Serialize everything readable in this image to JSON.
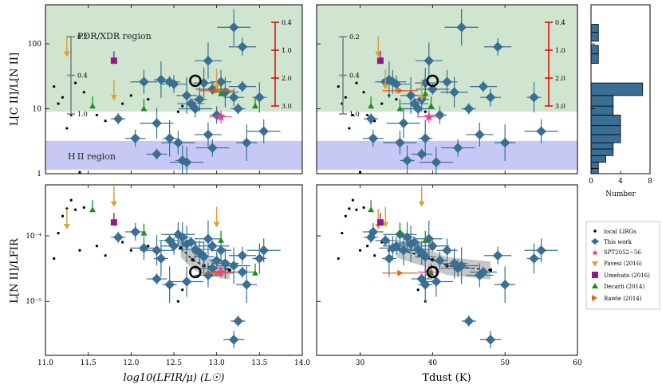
{
  "chart_data": {
    "type": "scatter",
    "colors": {
      "this_work": "#3a6f95",
      "local": "#000000",
      "spt": "#e0409a",
      "pavesi": "#e0a030",
      "umehata": "#8e1a8e",
      "decarli": "#1a8f1a",
      "rawle": "#e06020",
      "pdr_region": "#cfe5cf",
      "hii_region": "#c8c8f5",
      "scale_red": "#dd1010",
      "scale_gray": "#808080",
      "hist": "#3a6f95"
    },
    "legend": {
      "local": "local LIRGs",
      "this_work": "This work",
      "spt": "SPT2052−56",
      "pavesi": "Pavesi (2016)",
      "umehata": "Umehata (2016)",
      "decarli": "Decarli (2014)",
      "rawle": "Rawle (2014)"
    },
    "axes": {
      "top_ylabel": "L[C II]/L[N II]",
      "bottom_ylabel": "L[N II]/LFIR",
      "left_xlabel": "log10(LFIR/μ) (L☉)",
      "right_xlabel": "Tdust (K)",
      "hist_xlabel": "Number",
      "left_xlim": [
        11.0,
        14.0
      ],
      "left_xticks": [
        "11.0",
        "11.5",
        "12.0",
        "12.5",
        "13.0",
        "13.5",
        "14.0"
      ],
      "right_xlim": [
        24,
        60
      ],
      "right_xticks": [
        "30",
        "40",
        "50",
        "60"
      ],
      "top_ylim": [
        1,
        400
      ],
      "top_yticks": [
        "1",
        "10",
        "100"
      ],
      "bottom_ylim": [
        1.5e-06,
        0.0006
      ],
      "bottom_yticks": [
        "10⁻⁵",
        "10⁻⁴"
      ],
      "hist_xticks": [
        "0",
        "4",
        "8"
      ]
    },
    "regions": {
      "pdr_label": "PDR/XDR region",
      "pdr_range": [
        9,
        400
      ],
      "hii_label": "H II region",
      "hii_range": [
        1.15,
        3.2
      ]
    },
    "scale_bar_left": [
      "0.2",
      "0.4",
      "1.0"
    ],
    "scale_bar_right": [
      "0.4",
      "1.0",
      "2.0",
      "3.0"
    ],
    "this_work": [
      {
        "lfir": 11.85,
        "t": 31.5,
        "r": 7.0,
        "n": 9.5e-05
      },
      {
        "lfir": 12.05,
        "t": 31.8,
        "r": 3.5,
        "n": 0.000115
      },
      {
        "lfir": 12.15,
        "t": 34.5,
        "r": 26.0,
        "n": 6.5e-05
      },
      {
        "lfir": 12.3,
        "t": 36.0,
        "r": 6.0,
        "n": 6e-05
      },
      {
        "lfir": 12.35,
        "t": 34.0,
        "r": 28.0,
        "n": 4.5e-05
      },
      {
        "lfir": 12.45,
        "t": 33.5,
        "r": 26.0,
        "n": 8.5e-05
      },
      {
        "lfir": 12.5,
        "t": 35.0,
        "r": 24.0,
        "n": 7e-05
      },
      {
        "lfir": 12.55,
        "t": 35.5,
        "r": 3.0,
        "n": 0.000105
      },
      {
        "lfir": 12.6,
        "t": 36.5,
        "r": 1.6,
        "n": 9.5e-05
      },
      {
        "lfir": 12.65,
        "t": 37.0,
        "r": 16.0,
        "n": 7.5e-05
      },
      {
        "lfir": 12.7,
        "t": 37.5,
        "r": 12.0,
        "n": 8e-05
      },
      {
        "lfir": 12.75,
        "t": 38.0,
        "r": 10.0,
        "n": 6.2e-05
      },
      {
        "lfir": 12.8,
        "t": 38.5,
        "r": 14.0,
        "n": 5.5e-05
      },
      {
        "lfir": 12.85,
        "t": 39.0,
        "r": 25.0,
        "n": 4.8e-05
      },
      {
        "lfir": 12.9,
        "t": 39.5,
        "r": 55.0,
        "n": 9e-05
      },
      {
        "lfir": 12.95,
        "t": 40.0,
        "r": 20.0,
        "n": 7e-05
      },
      {
        "lfir": 13.0,
        "t": 41.0,
        "r": 8.0,
        "n": 4.2e-05
      },
      {
        "lfir": 13.05,
        "t": 42.0,
        "r": 26.0,
        "n": 6e-05
      },
      {
        "lfir": 13.1,
        "t": 43.0,
        "r": 18.0,
        "n": 3.8e-05
      },
      {
        "lfir": 13.2,
        "t": 44.0,
        "r": 180.0,
        "n": 3.5e-05
      },
      {
        "lfir": 13.25,
        "t": 45.0,
        "r": 10.0,
        "n": 5e-06
      },
      {
        "lfir": 13.2,
        "t": 48.0,
        "r": 15.0,
        "n": 2.6e-06
      },
      {
        "lfir": 12.9,
        "t": 46.5,
        "r": 4.0,
        "n": 2.5e-05
      },
      {
        "lfir": 12.65,
        "t": 40.5,
        "r": 1.5,
        "n": 2e-05
      },
      {
        "lfir": 12.45,
        "t": 39.0,
        "r": 3.5,
        "n": 1.8e-05
      },
      {
        "lfir": 12.3,
        "t": 38.5,
        "r": 2.0,
        "n": 2.2e-05
      },
      {
        "lfir": 13.3,
        "t": 49.0,
        "r": 90.0,
        "n": 5e-05
      },
      {
        "lfir": 13.55,
        "t": 55.0,
        "r": 4.5,
        "n": 6e-05
      },
      {
        "lfir": 13.5,
        "t": 54.0,
        "r": 15.0,
        "n": 4.5e-05
      },
      {
        "lfir": 13.35,
        "t": 50.0,
        "r": 3.0,
        "n": 1.8e-05
      },
      {
        "lfir": 13.3,
        "t": 47.0,
        "r": 22.0,
        "n": 2.8e-05
      },
      {
        "lfir": 12.95,
        "t": 43.5,
        "r": 2.5,
        "n": 3.2e-05
      }
    ],
    "local_lirgs": [
      {
        "lfir": 11.1,
        "t": 27.0,
        "r": 22.0,
        "n": 4.5e-05
      },
      {
        "lfir": 11.15,
        "t": 27.5,
        "r": 12.0,
        "n": 0.00011
      },
      {
        "lfir": 11.2,
        "t": 28.0,
        "r": 15.0,
        "n": 0.0002
      },
      {
        "lfir": 11.25,
        "t": 28.5,
        "r": 5.0,
        "n": 0.00026
      },
      {
        "lfir": 11.3,
        "t": 29.0,
        "r": 8.0,
        "n": 0.00035
      },
      {
        "lfir": 11.35,
        "t": 29.5,
        "r": 25.0,
        "n": 0.00025
      },
      {
        "lfir": 11.4,
        "t": 30.0,
        "r": 1.05,
        "n": 6e-05
      },
      {
        "lfir": 11.45,
        "t": 30.5,
        "r": 18.0,
        "n": 0.00027
      },
      {
        "lfir": 11.6,
        "t": 31.0,
        "r": 8.0,
        "n": 7e-05
      },
      {
        "lfir": 11.7,
        "t": 32.0,
        "r": 6.5,
        "n": 5e-05
      },
      {
        "lfir": 11.9,
        "t": 33.0,
        "r": 12.0,
        "n": 8e-05
      },
      {
        "lfir": 12.0,
        "t": 34.0,
        "r": 16.0,
        "n": 6e-05
      },
      {
        "lfir": 12.2,
        "t": 35.0,
        "r": 14.0,
        "n": 7e-05
      },
      {
        "lfir": 12.6,
        "t": 38.0,
        "r": 11.0,
        "n": 1.5e-05
      },
      {
        "lfir": 12.55,
        "t": 39.0,
        "r": 9.0,
        "n": 1e-05
      }
    ],
    "spt": {
      "lfir": 13.05,
      "t": 39.5,
      "r": 7.5,
      "n": 2.8e-05
    },
    "pavesi": [
      {
        "lfir": 11.25,
        "t": 32.5,
        "r": 70.0,
        "n": 0.00014
      },
      {
        "lfir": 11.8,
        "t": 38.5,
        "r": 15.0,
        "n": 0.00031
      },
      {
        "lfir": 13.0,
        "t": 33.5,
        "r": 22.0,
        "n": 0.00015
      }
    ],
    "umehata": {
      "lfir": 11.8,
      "t": 32.8,
      "r": 55.0,
      "n": 0.00016
    },
    "decarli": [
      {
        "lfir": 11.55,
        "t": 31.5,
        "r": 11.0,
        "n": 0.00025
      },
      {
        "lfir": 12.15,
        "t": 35.5,
        "r": 10.0,
        "n": 0.00011
      },
      {
        "lfir": 13.05,
        "t": 39.0,
        "r": 17.0,
        "n": 8.5e-05
      },
      {
        "lfir": 13.45,
        "t": 39.8,
        "r": 11.0,
        "n": 2.7e-05
      }
    ],
    "rawle": {
      "lfir": 13.0,
      "t": 35.5,
      "r": 19.0,
      "n": 2.7e-05
    },
    "highlight": {
      "lfir": 12.75,
      "t": 40.0,
      "r": 27.0,
      "n": 2.8e-05
    },
    "dashed_trend": {
      "lfir": [
        12.58,
        12.72,
        12.85,
        13.15
      ],
      "t": [
        35.0,
        40.0,
        42.0,
        48.0
      ],
      "n": [
        6.5e-05,
        4.3e-05,
        3.5e-05,
        3e-05
      ]
    },
    "histogram": {
      "bins": [
        [
          1.0,
          1.2,
          1
        ],
        [
          1.2,
          1.5,
          1
        ],
        [
          1.5,
          1.9,
          2
        ],
        [
          1.9,
          2.4,
          3
        ],
        [
          2.4,
          3.0,
          3
        ],
        [
          3.0,
          4.0,
          4
        ],
        [
          4.0,
          5.5,
          4
        ],
        [
          5.5,
          8.0,
          4
        ],
        [
          8.0,
          11.0,
          3
        ],
        [
          11.0,
          16.0,
          3
        ],
        [
          16.0,
          25.0,
          7
        ],
        [
          50.0,
          70.0,
          1
        ],
        [
          70.0,
          95.0,
          1
        ],
        [
          110.0,
          150.0,
          1
        ],
        [
          150.0,
          200.0,
          1
        ]
      ]
    }
  }
}
